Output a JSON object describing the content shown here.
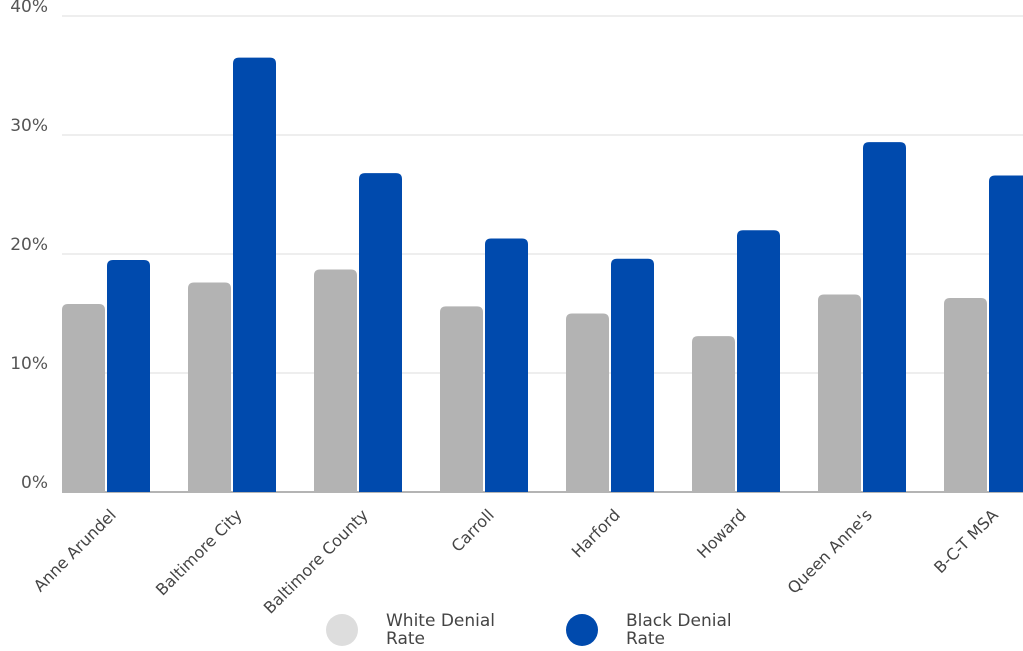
{
  "chart_data": {
    "type": "bar",
    "categories": [
      "Anne Arundel",
      "Baltimore City",
      "Baltimore County",
      "Carroll",
      "Harford",
      "Howard",
      "Queen Anne's",
      "B-C-T MSA"
    ],
    "series": [
      {
        "name": "White Denial Rate",
        "color": "#b3b3b3",
        "values": [
          15.8,
          17.6,
          18.7,
          15.6,
          15.0,
          13.1,
          16.6,
          16.3
        ]
      },
      {
        "name": "Black Denial Rate",
        "color": "#004aad",
        "values": [
          19.5,
          36.5,
          26.8,
          21.3,
          19.6,
          22.0,
          29.4,
          26.6
        ]
      }
    ],
    "y_ticks": [
      "0%",
      "10%",
      "20%",
      "30%",
      "40%"
    ],
    "ylim": [
      0,
      40
    ],
    "grid": true,
    "legend_position": "bottom"
  },
  "legend": {
    "white_label": "White Denial Rate",
    "black_label": "Black Denial Rate",
    "white_color": "#dddddd",
    "black_color": "#004aad"
  }
}
